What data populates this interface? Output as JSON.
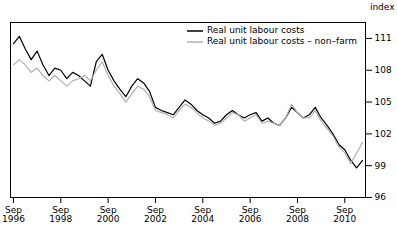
{
  "chart_data": {
    "type": "line",
    "ylabel": "index",
    "ylim": [
      96,
      112.5
    ],
    "yticks": [
      96,
      99,
      102,
      105,
      108,
      111
    ],
    "grid": false,
    "legend": "upper right",
    "categories": [
      "Sep\n1996",
      null,
      null,
      null,
      null,
      null,
      null,
      null,
      "Sep\n1998",
      null,
      null,
      null,
      null,
      null,
      null,
      null,
      "Sep\n2000",
      null,
      null,
      null,
      null,
      null,
      null,
      null,
      "Sep\n2002",
      null,
      null,
      null,
      null,
      null,
      null,
      null,
      "Sep\n2004",
      null,
      null,
      null,
      null,
      null,
      null,
      null,
      "Sep\n2006",
      null,
      null,
      null,
      null,
      null,
      null,
      null,
      "Sep\n2008",
      null,
      null,
      null,
      null,
      null,
      null,
      null,
      "Sep\n2010",
      null,
      null,
      null
    ],
    "series": [
      {
        "name": "Real unit labour costs",
        "color": "#000000",
        "values": [
          110.5,
          111.2,
          110.0,
          109.0,
          109.8,
          108.5,
          107.5,
          108.2,
          108.0,
          107.2,
          107.8,
          107.5,
          107.0,
          106.5,
          108.8,
          109.5,
          108.0,
          107.0,
          106.2,
          105.5,
          106.5,
          107.2,
          106.8,
          106.0,
          104.5,
          104.2,
          104.0,
          103.8,
          104.5,
          105.2,
          104.8,
          104.2,
          103.8,
          103.5,
          103.0,
          103.2,
          103.8,
          104.2,
          103.8,
          103.5,
          103.8,
          104.0,
          103.2,
          103.5,
          103.0,
          102.8,
          103.5,
          104.5,
          104.0,
          103.5,
          103.8,
          104.5,
          103.5,
          102.8,
          102.0,
          101.0,
          100.5,
          99.5,
          98.8,
          99.5
        ]
      },
      {
        "name": "Real unit labour costs – non–farm",
        "color": "#b0b0b0",
        "values": [
          108.5,
          109.0,
          108.5,
          107.8,
          108.2,
          107.5,
          107.0,
          107.5,
          107.0,
          106.5,
          107.0,
          107.2,
          107.5,
          107.0,
          108.0,
          108.8,
          107.5,
          106.5,
          105.8,
          105.0,
          105.8,
          106.5,
          106.2,
          105.5,
          104.2,
          104.0,
          103.8,
          103.5,
          104.2,
          104.8,
          104.5,
          104.0,
          103.5,
          103.2,
          102.8,
          103.0,
          103.5,
          104.0,
          103.8,
          103.2,
          103.5,
          103.8,
          103.0,
          103.2,
          103.0,
          102.8,
          103.5,
          104.8,
          104.0,
          103.5,
          103.5,
          104.2,
          103.2,
          102.5,
          101.8,
          100.8,
          100.2,
          99.2,
          100.2,
          101.2
        ]
      }
    ]
  }
}
